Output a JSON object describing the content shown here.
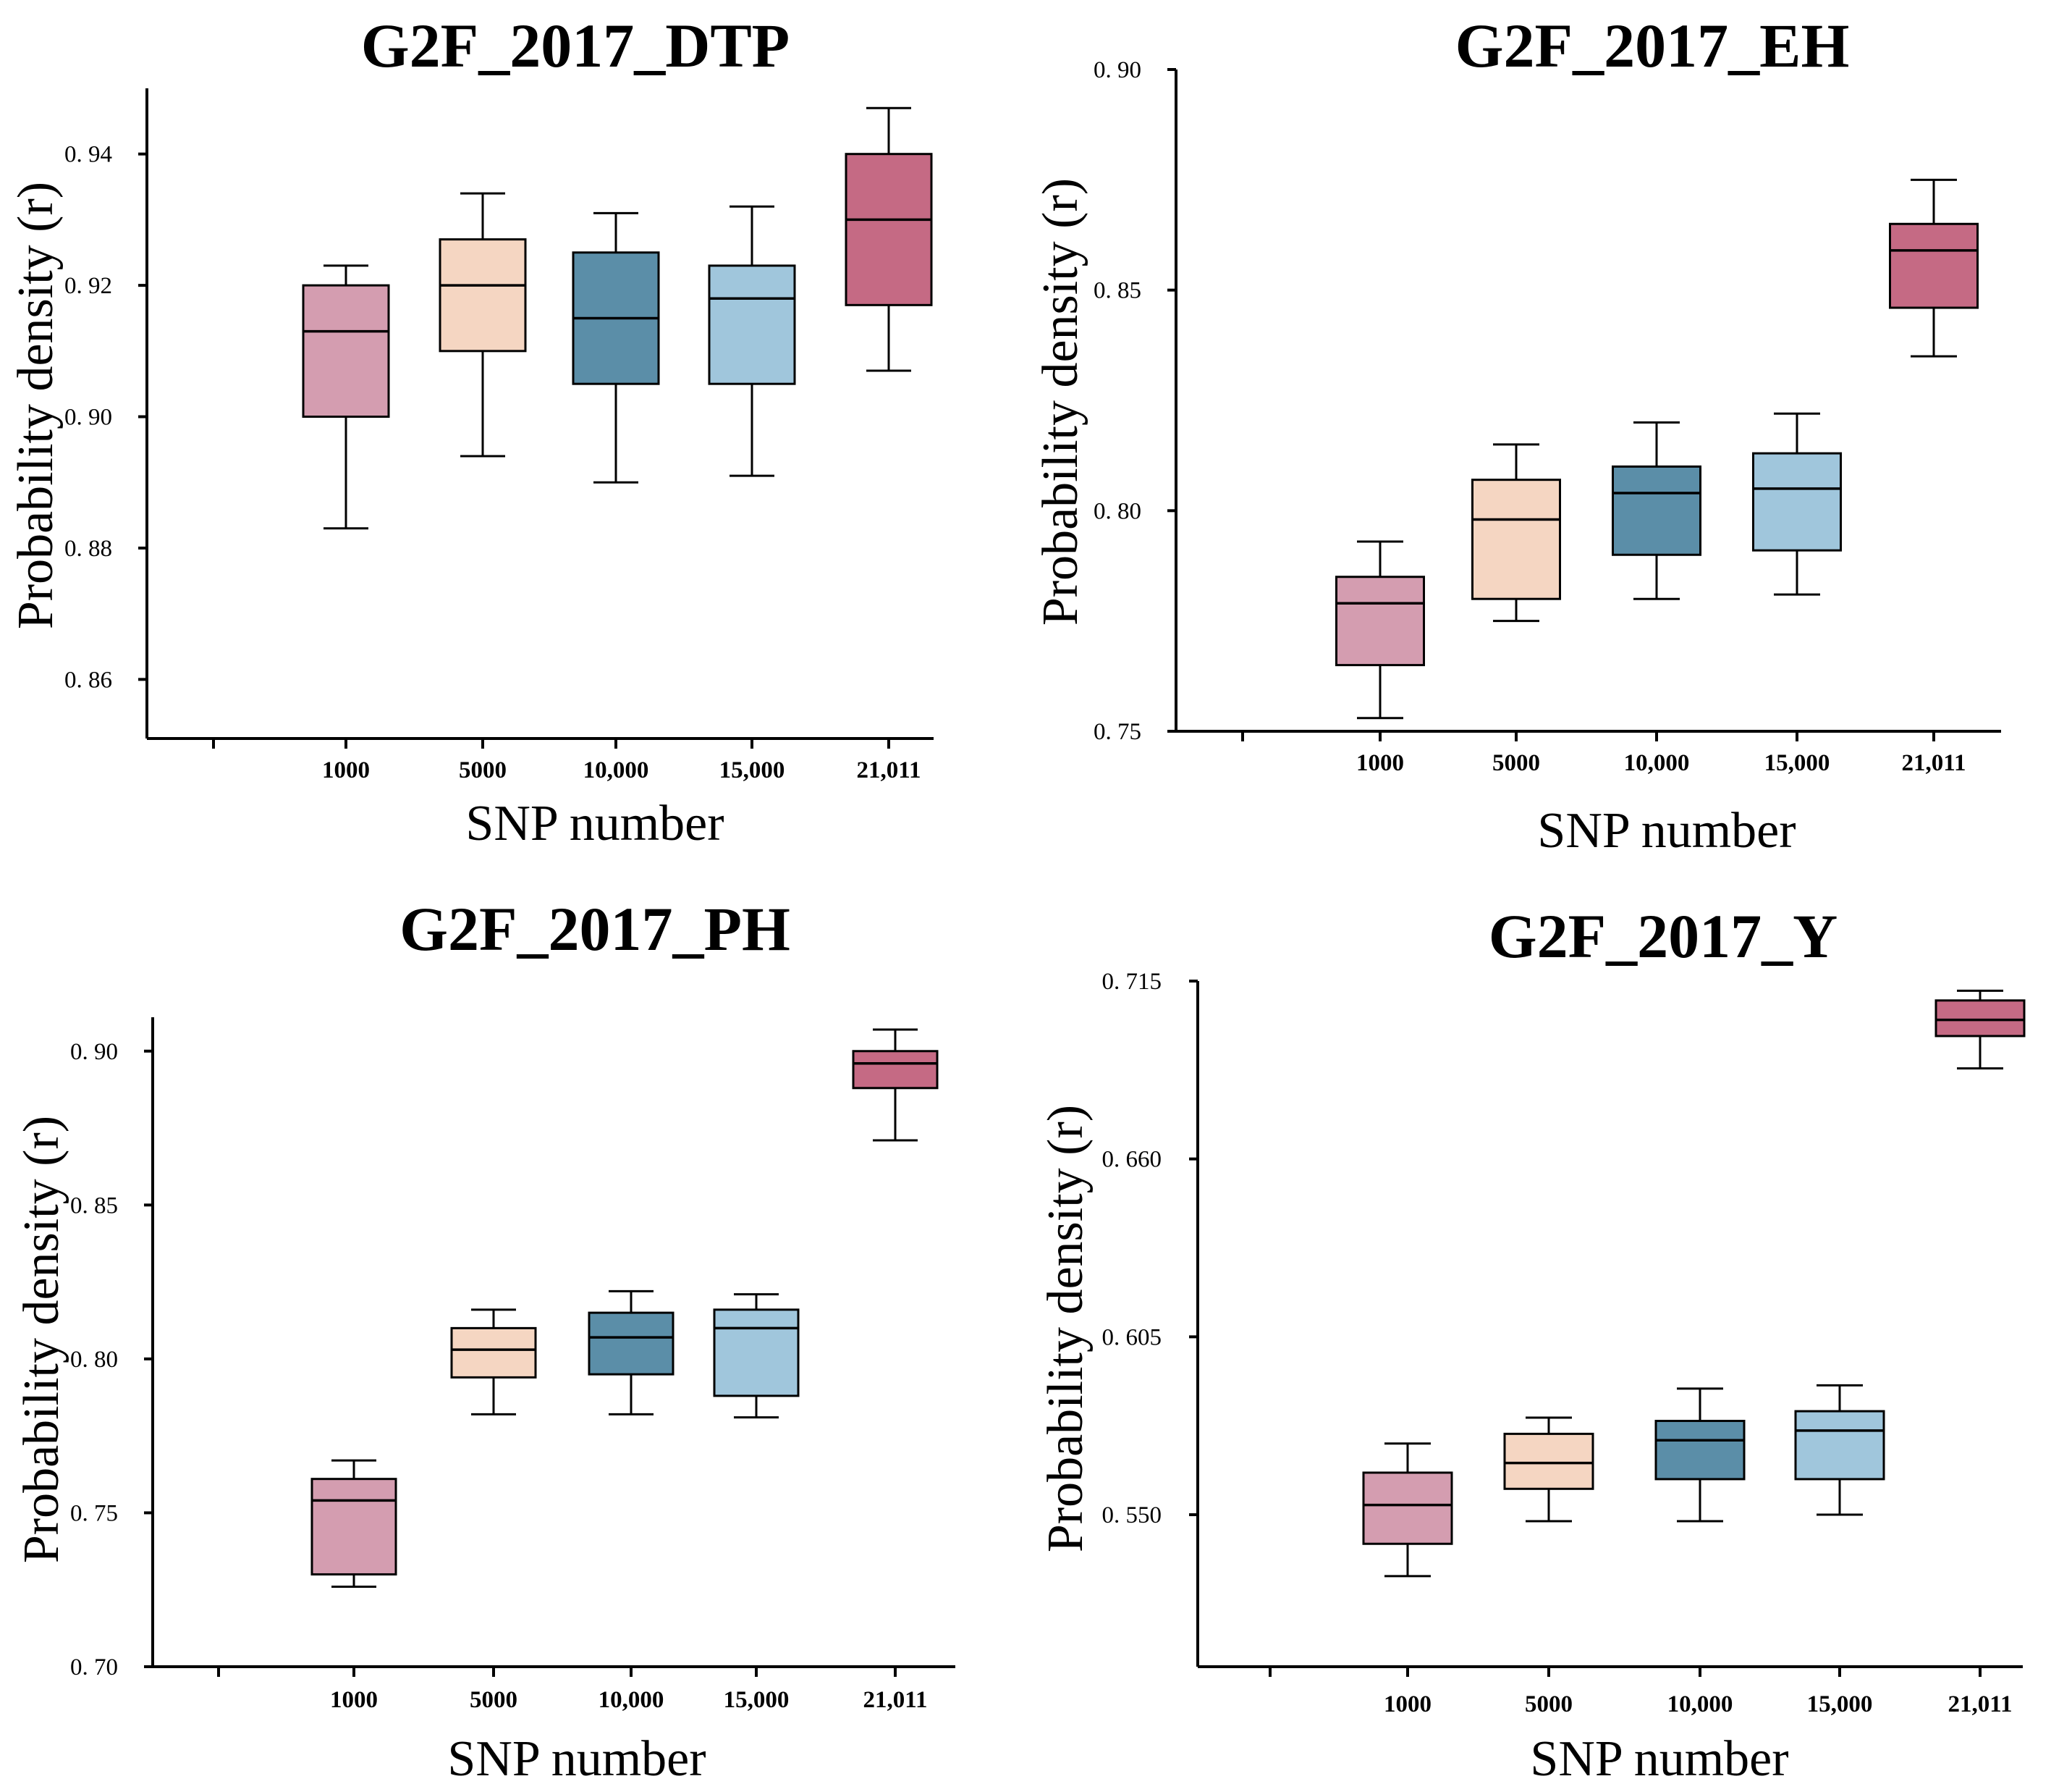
{
  "colors": [
    "#d49db0",
    "#f5d6c2",
    "#5b8ea8",
    "#a0c6dc",
    "#c56a84"
  ],
  "chart_data": [
    {
      "type": "box",
      "title": "G2F_2017_DTP",
      "xlabel": "SNP number",
      "ylabel": "Probability density (r)",
      "categories": [
        "1000",
        "5000",
        "10,000",
        "15,000",
        "21,011"
      ],
      "yticks": [
        0.86,
        0.88,
        0.9,
        0.92,
        0.94
      ],
      "ytick_labels": [
        "0. 86",
        "0. 88",
        "0. 90",
        "0. 92",
        "0. 94"
      ],
      "ylim": [
        0.851,
        0.95
      ],
      "boxes": [
        {
          "min": 0.883,
          "q1": 0.9,
          "median": 0.913,
          "q3": 0.92,
          "max": 0.923
        },
        {
          "min": 0.894,
          "q1": 0.91,
          "median": 0.92,
          "q3": 0.927,
          "max": 0.934
        },
        {
          "min": 0.89,
          "q1": 0.905,
          "median": 0.915,
          "q3": 0.925,
          "max": 0.931
        },
        {
          "min": 0.891,
          "q1": 0.905,
          "median": 0.918,
          "q3": 0.923,
          "max": 0.932
        },
        {
          "min": 0.907,
          "q1": 0.917,
          "median": 0.93,
          "q3": 0.94,
          "max": 0.947
        }
      ]
    },
    {
      "type": "box",
      "title": "G2F_2017_EH",
      "xlabel": "SNP number",
      "ylabel": "Probability density (r)",
      "categories": [
        "1000",
        "5000",
        "10,000",
        "15,000",
        "21,011"
      ],
      "yticks": [
        0.75,
        0.8,
        0.85,
        0.9
      ],
      "ytick_labels": [
        "0. 75",
        "0. 80",
        "0. 85",
        "0. 90"
      ],
      "ylim": [
        0.75,
        0.9
      ],
      "boxes": [
        {
          "min": 0.753,
          "q1": 0.765,
          "median": 0.779,
          "q3": 0.785,
          "max": 0.793
        },
        {
          "min": 0.775,
          "q1": 0.78,
          "median": 0.798,
          "q3": 0.807,
          "max": 0.815
        },
        {
          "min": 0.78,
          "q1": 0.79,
          "median": 0.804,
          "q3": 0.81,
          "max": 0.82
        },
        {
          "min": 0.781,
          "q1": 0.791,
          "median": 0.805,
          "q3": 0.813,
          "max": 0.822
        },
        {
          "min": 0.835,
          "q1": 0.846,
          "median": 0.859,
          "q3": 0.865,
          "max": 0.875
        }
      ]
    },
    {
      "type": "box",
      "title": "G2F_2017_PH",
      "xlabel": "SNP number",
      "ylabel": "Probability density (r)",
      "categories": [
        "1000",
        "5000",
        "10,000",
        "15,000",
        "21,011"
      ],
      "yticks": [
        0.7,
        0.75,
        0.8,
        0.85,
        0.9
      ],
      "ytick_labels": [
        "0. 70",
        "0. 75",
        "0. 80",
        "0. 85",
        "0. 90"
      ],
      "ylim": [
        0.7,
        0.911
      ],
      "boxes": [
        {
          "min": 0.726,
          "q1": 0.73,
          "median": 0.754,
          "q3": 0.761,
          "max": 0.767
        },
        {
          "min": 0.782,
          "q1": 0.794,
          "median": 0.803,
          "q3": 0.81,
          "max": 0.816
        },
        {
          "min": 0.782,
          "q1": 0.795,
          "median": 0.807,
          "q3": 0.815,
          "max": 0.822
        },
        {
          "min": 0.781,
          "q1": 0.788,
          "median": 0.81,
          "q3": 0.816,
          "max": 0.821
        },
        {
          "min": 0.871,
          "q1": 0.888,
          "median": 0.896,
          "q3": 0.9,
          "max": 0.907
        }
      ]
    },
    {
      "type": "box",
      "title": "G2F_2017_Y",
      "xlabel": "SNP number",
      "ylabel": "Probability density (r)",
      "categories": [
        "1000",
        "5000",
        "10,000",
        "15,000",
        "21,011"
      ],
      "yticks": [
        0.55,
        0.605,
        0.66,
        0.715
      ],
      "ytick_labels": [
        "0. 550",
        "0. 605",
        "0. 660",
        "0. 715"
      ],
      "ylim": [
        0.503,
        0.715
      ],
      "boxes": [
        {
          "min": 0.531,
          "q1": 0.541,
          "median": 0.553,
          "q3": 0.563,
          "max": 0.572
        },
        {
          "min": 0.548,
          "q1": 0.558,
          "median": 0.566,
          "q3": 0.575,
          "max": 0.58
        },
        {
          "min": 0.548,
          "q1": 0.561,
          "median": 0.573,
          "q3": 0.579,
          "max": 0.589
        },
        {
          "min": 0.55,
          "q1": 0.561,
          "median": 0.576,
          "q3": 0.582,
          "max": 0.59
        },
        {
          "min": 0.688,
          "q1": 0.698,
          "median": 0.703,
          "q3": 0.709,
          "max": 0.712
        }
      ]
    }
  ]
}
